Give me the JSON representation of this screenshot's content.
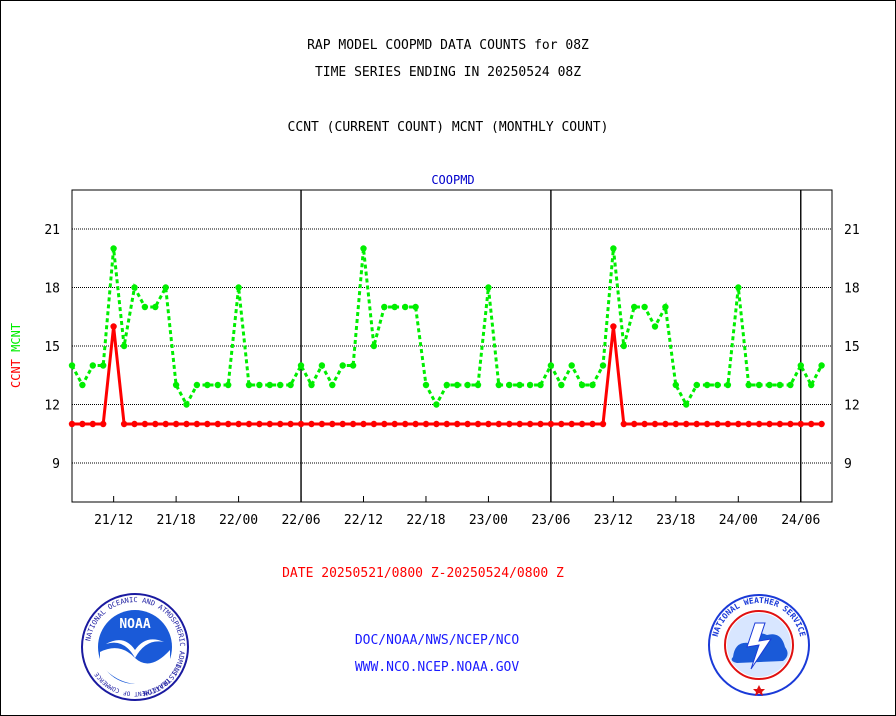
{
  "header": {
    "title_line1": "RAP MODEL COOPMD DATA COUNTS for 08Z",
    "title_line2": "TIME SERIES ENDING IN 20250524 08Z",
    "subtitle": "CCNT (CURRENT COUNT) MCNT (MONTHLY COUNT)"
  },
  "footer": {
    "date_range": "DATE 20250521/0800 Z-20250524/0800 Z",
    "credit_line1": "DOC/NOAA/NWS/NCEP/NCO",
    "credit_line2": "WWW.NCO.NCEP.NOAA.GOV"
  },
  "logos": {
    "noaa": {
      "text": "NOAA",
      "ring_text": "NATIONAL OCEANIC AND ATMOSPHERIC ADMINISTRATION",
      "ring_text_bottom": "U.S. DEPARTMENT OF COMMERCE"
    },
    "nws": {
      "ring_text": "NATIONAL WEATHER SERVICE"
    }
  },
  "colors": {
    "ccnt": "#ff0000",
    "mcnt": "#00ee00",
    "plot_label": "#0000cc",
    "grid": "#000000",
    "background": "#ffffff"
  },
  "chart_data": {
    "type": "line",
    "plot_label": "COOPMD",
    "ylabel_parts": [
      {
        "text": "CCNT",
        "color": "#ff0000"
      },
      {
        "text": "MCNT",
        "color": "#00ee00"
      }
    ],
    "ylim": [
      7,
      23
    ],
    "yticks": [
      9,
      12,
      15,
      18,
      21
    ],
    "grid": true,
    "x_hours_from_start": {
      "start": 0,
      "end": 73,
      "step": 1
    },
    "xticks": [
      {
        "hour": 4,
        "label": "21/12"
      },
      {
        "hour": 10,
        "label": "21/18"
      },
      {
        "hour": 16,
        "label": "22/00"
      },
      {
        "hour": 22,
        "label": "22/06"
      },
      {
        "hour": 28,
        "label": "22/12"
      },
      {
        "hour": 34,
        "label": "22/18"
      },
      {
        "hour": 40,
        "label": "23/00"
      },
      {
        "hour": 46,
        "label": "23/06"
      },
      {
        "hour": 52,
        "label": "23/12"
      },
      {
        "hour": 58,
        "label": "23/18"
      },
      {
        "hour": 64,
        "label": "24/00"
      },
      {
        "hour": 70,
        "label": "24/06"
      }
    ],
    "day_boundaries_hours": [
      22,
      46,
      70
    ],
    "series": [
      {
        "name": "MCNT",
        "color": "#00ee00",
        "style": "dotted",
        "values": [
          14,
          13,
          14,
          14,
          20,
          15,
          18,
          17,
          17,
          18,
          13,
          12,
          13,
          13,
          13,
          13,
          18,
          13,
          13,
          13,
          13,
          13,
          14,
          13,
          14,
          13,
          14,
          14,
          20,
          15,
          17,
          17,
          17,
          17,
          13,
          12,
          13,
          13,
          13,
          13,
          18,
          13,
          13,
          13,
          13,
          13,
          14,
          13,
          14,
          13,
          13,
          14,
          20,
          15,
          17,
          17,
          16,
          17,
          13,
          12,
          13,
          13,
          13,
          13,
          18,
          13,
          13,
          13,
          13,
          13,
          14,
          13,
          14
        ]
      },
      {
        "name": "CCNT",
        "color": "#ff0000",
        "style": "solid",
        "values": [
          11,
          11,
          11,
          11,
          16,
          11,
          11,
          11,
          11,
          11,
          11,
          11,
          11,
          11,
          11,
          11,
          11,
          11,
          11,
          11,
          11,
          11,
          11,
          11,
          11,
          11,
          11,
          11,
          11,
          11,
          11,
          11,
          11,
          11,
          11,
          11,
          11,
          11,
          11,
          11,
          11,
          11,
          11,
          11,
          11,
          11,
          11,
          11,
          11,
          11,
          11,
          11,
          16,
          11,
          11,
          11,
          11,
          11,
          11,
          11,
          11,
          11,
          11,
          11,
          11,
          11,
          11,
          11,
          11,
          11,
          11,
          11,
          11
        ]
      }
    ]
  }
}
